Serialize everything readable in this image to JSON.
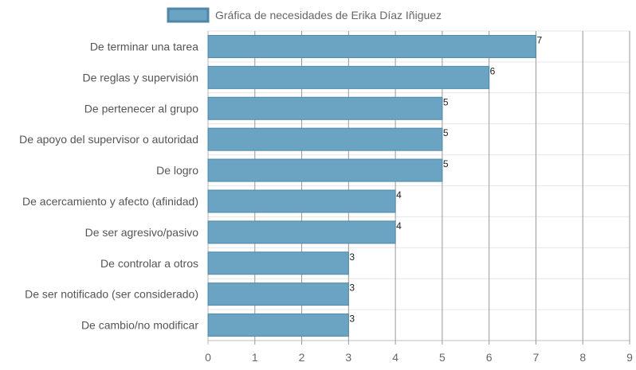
{
  "chart_data": {
    "type": "bar",
    "orientation": "horizontal",
    "title": "",
    "xlabel": "",
    "ylabel": "",
    "legend": {
      "entries": [
        "Gráfica de necesidades de Erika Díaz Iñiguez"
      ],
      "placement": "top-center"
    },
    "categories": [
      "De terminar una tarea",
      "De reglas y supervisión",
      "De pertenecer al grupo",
      "De apoyo del supervisor o autoridad",
      "De logro",
      "De acercamiento y afecto (afinidad)",
      "De ser agresivo/pasivo",
      "De controlar a otros",
      "De ser notificado (ser considerado)",
      "De cambio/no modificar"
    ],
    "series": [
      {
        "name": "Gráfica de necesidades de Erika Díaz Iñiguez",
        "values": [
          7,
          6,
          5,
          5,
          5,
          4,
          4,
          3,
          3,
          3
        ],
        "color": "#6ba3c2",
        "border_color": "#4e87a8"
      }
    ],
    "xlim": [
      0,
      9
    ],
    "x_ticks": [
      "0",
      "1",
      "2",
      "3",
      "4",
      "5",
      "6",
      "7",
      "8",
      "9"
    ],
    "grid": true,
    "data_labels": true
  }
}
